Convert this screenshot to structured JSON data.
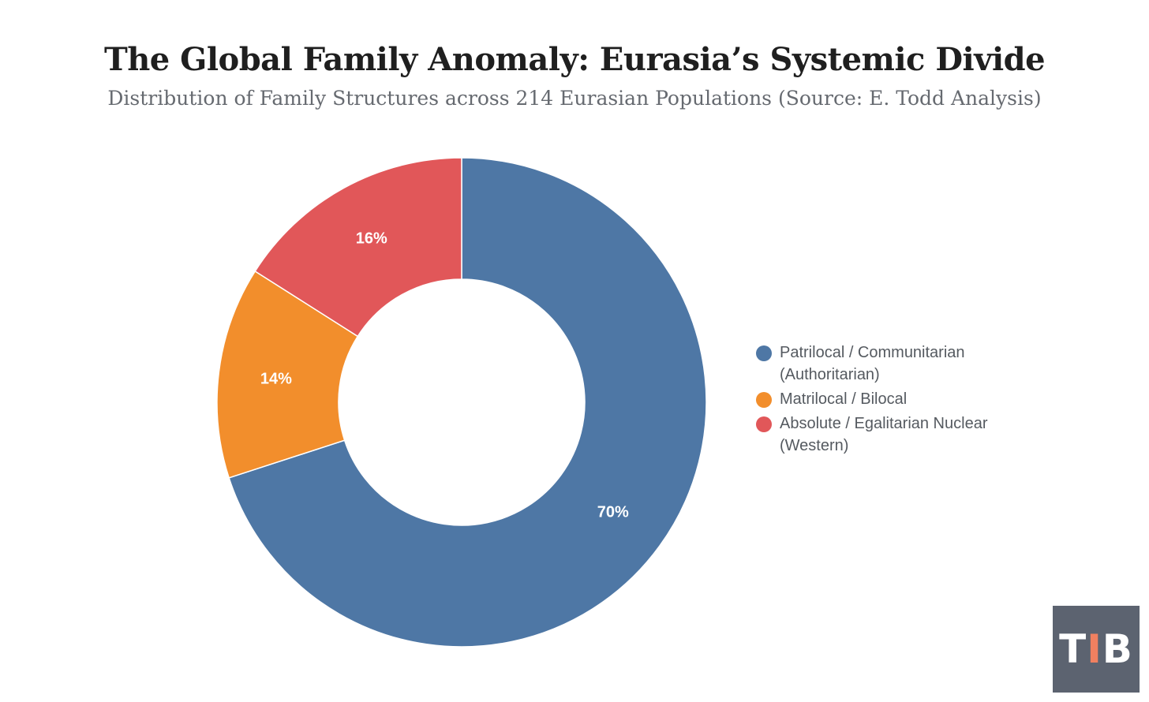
{
  "header": {
    "title": "The Global Family Anomaly: Eurasia’s Systemic Divide",
    "subtitle": "Distribution of Family Structures across 214 Eurasian Populations (Source: E. Todd Analysis)"
  },
  "chart_data": {
    "type": "pie",
    "donut": true,
    "title": "The Global Family Anomaly: Eurasia’s Systemic Divide",
    "subtitle": "Distribution of Family Structures across 214 Eurasian Populations (Source: E. Todd Analysis)",
    "legend_position": "right",
    "slices": [
      {
        "label": "Patrilocal / Communitarian (Authoritarian)",
        "legend_lines": [
          "Patrilocal / Communitarian",
          "(Authoritarian)"
        ],
        "value": 70,
        "display": "70%",
        "color": "#4e77a5"
      },
      {
        "label": "Matrilocal / Bilocal",
        "legend_lines": [
          "Matrilocal / Bilocal"
        ],
        "value": 14,
        "display": "14%",
        "color": "#f28e2c"
      },
      {
        "label": "Absolute / Egalitarian Nuclear (Western)",
        "legend_lines": [
          "Absolute / Egalitarian Nuclear",
          "(Western)"
        ],
        "value": 16,
        "display": "16%",
        "color": "#e15759"
      }
    ]
  },
  "logo": {
    "part1": "T",
    "part2": "I",
    "part3": "B",
    "background": "#5c6370",
    "accent": "#f08060"
  }
}
